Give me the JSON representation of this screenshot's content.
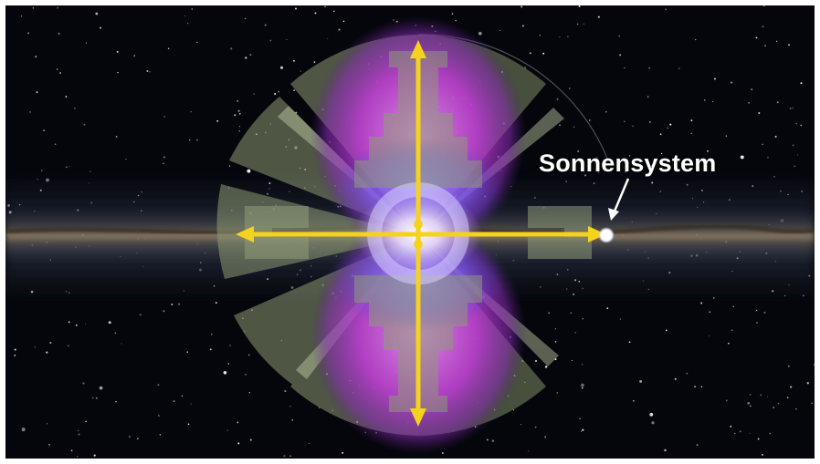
{
  "labels": {
    "solar_system": "Sonnensystem"
  },
  "icons": {
    "solar_system_marker": "white-dot-icon",
    "pointer": "arrow-icon",
    "axes": "double-arrow-icon"
  },
  "colors": {
    "space_background": "#05060b",
    "galactic_disk": "#8a7a62",
    "fermi_bubbles": "#c13bd8",
    "bubble_glow": "#5a6cff",
    "gamma_wedges": "#a9b98c",
    "axis_arrows": "#f5d21e",
    "label_text": "#ffffff"
  }
}
